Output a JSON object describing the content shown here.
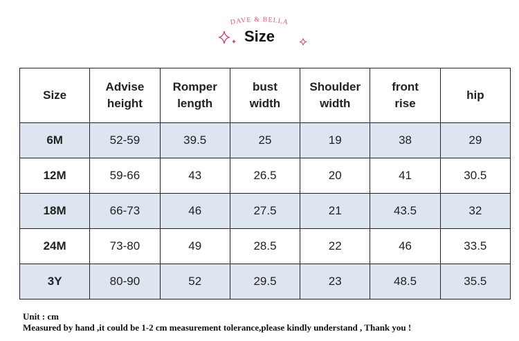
{
  "header": {
    "brand": "DAVE & BELLA",
    "title": "Size"
  },
  "table": {
    "columns": [
      "Size",
      "Advise\nheight",
      "Romper\nlength",
      "bust\nwidth",
      "Shoulder\nwidth",
      "front\nrise",
      "hip"
    ],
    "rows": [
      [
        "6M",
        "52-59",
        "39.5",
        "25",
        "19",
        "38",
        "29"
      ],
      [
        "12M",
        "59-66",
        "43",
        "26.5",
        "20",
        "41",
        "30.5"
      ],
      [
        "18M",
        "66-73",
        "46",
        "27.5",
        "21",
        "43.5",
        "32"
      ],
      [
        "24M",
        "73-80",
        "49",
        "28.5",
        "22",
        "46",
        "33.5"
      ],
      [
        "3Y",
        "80-90",
        "52",
        "29.5",
        "23",
        "48.5",
        "35.5"
      ]
    ]
  },
  "notes": [
    "Unit : cm",
    "Measured by hand ,it could be 1-2 cm measurement tolerance,please kindly understand , Thank you !"
  ]
}
